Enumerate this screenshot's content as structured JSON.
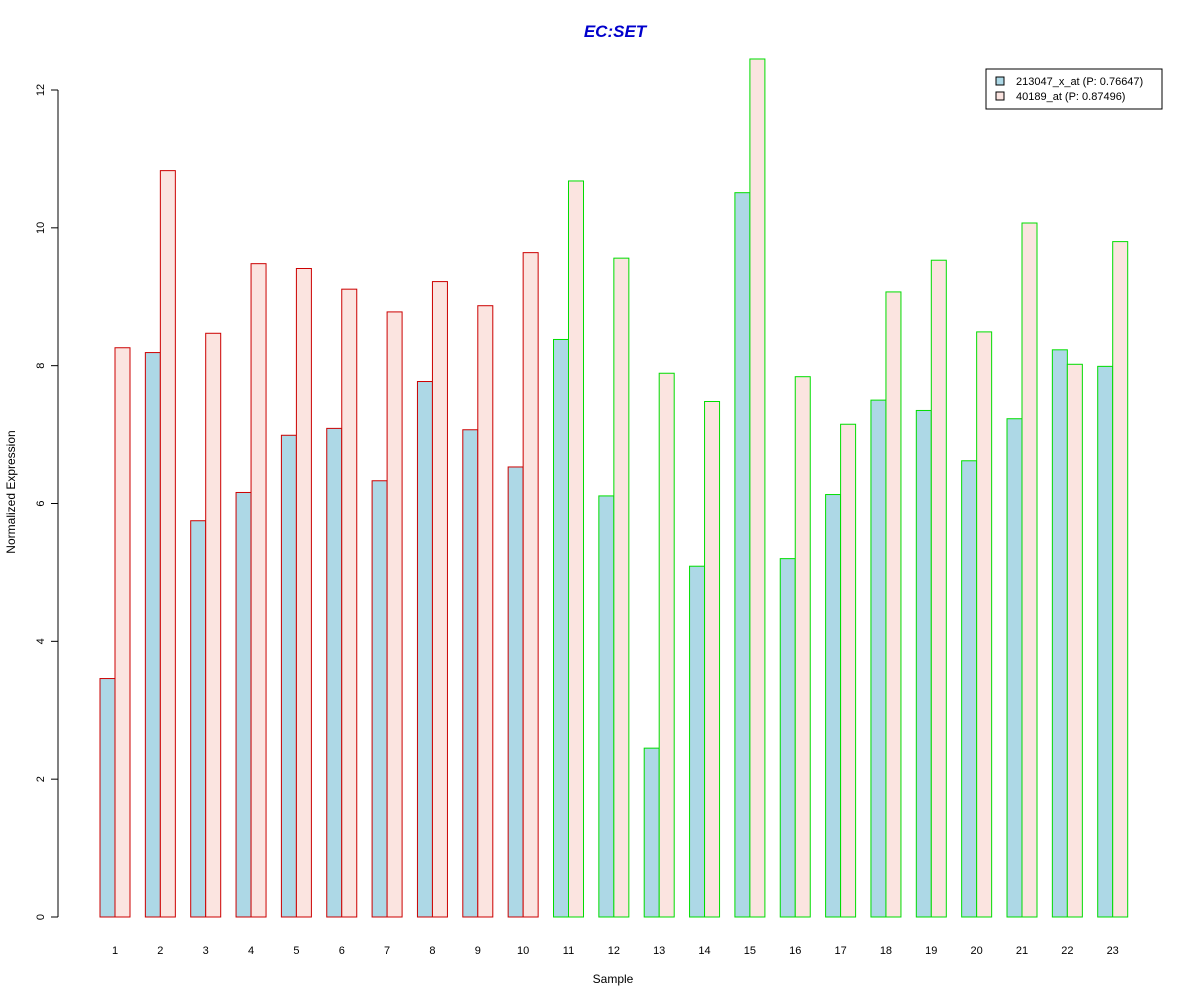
{
  "chart_data": {
    "type": "bar",
    "title": "EC:SET",
    "xlabel": "Sample",
    "ylabel": "Normalized Expression",
    "ylim": [
      0,
      12
    ],
    "yticks": [
      0,
      2,
      4,
      6,
      8,
      10,
      12
    ],
    "grid": false,
    "legend_position": "top-right",
    "categories": [
      "1",
      "2",
      "3",
      "4",
      "5",
      "6",
      "7",
      "8",
      "9",
      "10",
      "11",
      "12",
      "13",
      "14",
      "15",
      "16",
      "17",
      "18",
      "19",
      "20",
      "21",
      "22",
      "23"
    ],
    "group_border_colors": [
      "#cc0000",
      "#cc0000",
      "#cc0000",
      "#cc0000",
      "#cc0000",
      "#cc0000",
      "#cc0000",
      "#cc0000",
      "#cc0000",
      "#cc0000",
      "#00dd00",
      "#00dd00",
      "#00dd00",
      "#00dd00",
      "#00dd00",
      "#00dd00",
      "#00dd00",
      "#00dd00",
      "#00dd00",
      "#00dd00",
      "#00dd00",
      "#00dd00",
      "#00dd00"
    ],
    "series": [
      {
        "name": "213047_x_at (P: 0.76647)",
        "fill": "#add8e6",
        "values": [
          3.46,
          8.19,
          5.75,
          6.16,
          6.99,
          7.09,
          6.33,
          7.77,
          7.07,
          6.53,
          8.38,
          6.11,
          2.45,
          5.09,
          10.51,
          5.2,
          6.13,
          7.5,
          7.35,
          6.62,
          7.23,
          8.23,
          7.99
        ]
      },
      {
        "name": "40189_at (P: 0.87496)",
        "fill": "#fbe4e0",
        "values": [
          8.26,
          10.83,
          8.47,
          9.48,
          9.41,
          9.11,
          8.78,
          9.22,
          8.87,
          9.64,
          10.68,
          9.56,
          7.89,
          7.48,
          12.45,
          7.84,
          7.15,
          9.07,
          9.53,
          8.49,
          10.07,
          8.02,
          9.8
        ]
      }
    ]
  }
}
